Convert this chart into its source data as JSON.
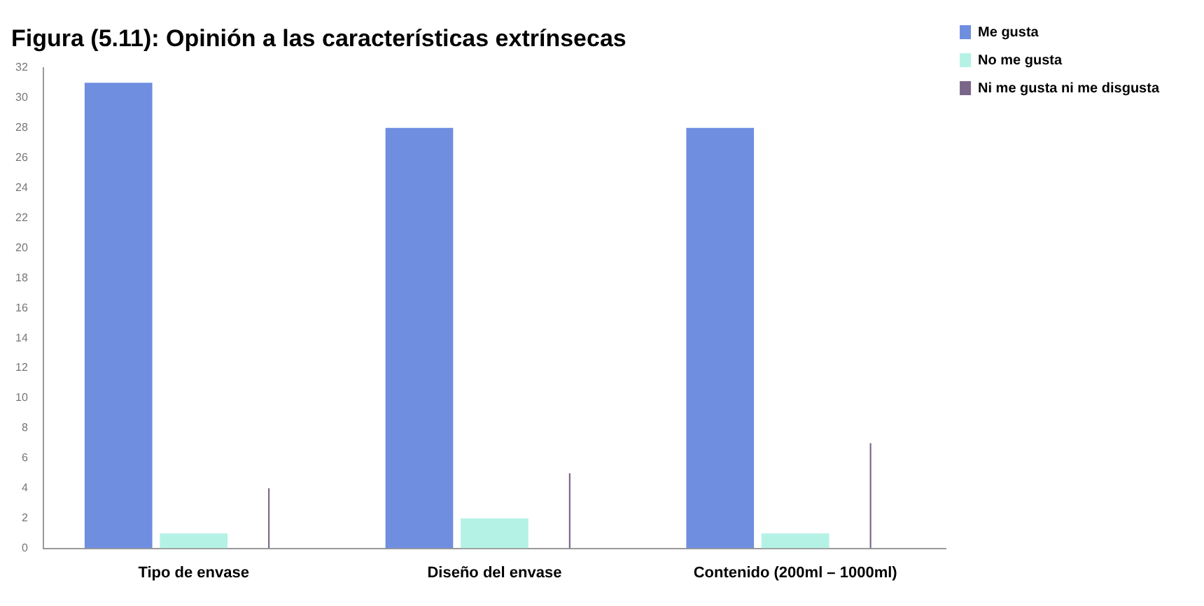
{
  "chart_data": {
    "type": "bar",
    "title": "Figura (5.11): Opinión a las características extrínsecas",
    "categories": [
      "Tipo de envase",
      "Diseño del envase",
      "Contenido (200ml – 1000ml)"
    ],
    "series": [
      {
        "name": "Me gusta",
        "color": "#6f8ee0",
        "values": [
          31,
          28,
          28
        ]
      },
      {
        "name": "No me gusta",
        "color": "#b5f2e6",
        "values": [
          1,
          2,
          1
        ]
      },
      {
        "name": "Ni me gusta ni me disgusta",
        "color": "#7a6688",
        "values": [
          4,
          5,
          7
        ]
      }
    ],
    "ylim": [
      0,
      32
    ],
    "yticks": [
      0,
      2,
      4,
      6,
      8,
      10,
      12,
      14,
      16,
      18,
      20,
      22,
      24,
      26,
      28,
      30,
      32
    ],
    "grid": false,
    "legend": "top right"
  }
}
